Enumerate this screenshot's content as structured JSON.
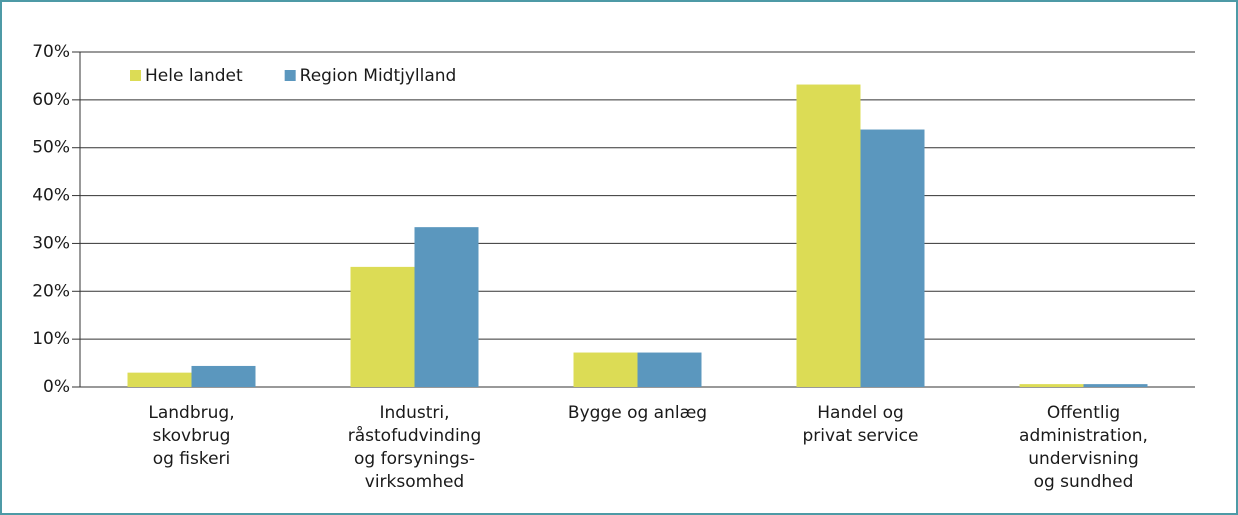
{
  "chart_data": {
    "type": "bar",
    "categories": [
      [
        "Landbrug,",
        "skovbrug",
        "og fiskeri"
      ],
      [
        "Industri,",
        "råstofudvinding",
        "og forsynings-",
        "virksomhed"
      ],
      [
        "Bygge og anlæg"
      ],
      [
        "Handel og",
        "privat service"
      ],
      [
        "Offentlig",
        "administration,",
        "undervisning",
        "og sundhed"
      ]
    ],
    "series": [
      {
        "name": "Hele landet",
        "color": "#dcdc55",
        "values": [
          3,
          25.1,
          7.2,
          63.2,
          0.6
        ]
      },
      {
        "name": "Region Midtjylland",
        "color": "#5b97be",
        "values": [
          4.4,
          33.4,
          7.2,
          53.8,
          0.6
        ]
      }
    ],
    "ylim": [
      0,
      70
    ],
    "yticks": [
      {
        "value": 0,
        "label": "0%"
      },
      {
        "value": 10,
        "label": "10%"
      },
      {
        "value": 20,
        "label": "20%"
      },
      {
        "value": 30,
        "label": "30%"
      },
      {
        "value": 40,
        "label": "40%"
      },
      {
        "value": 50,
        "label": "50%"
      },
      {
        "value": 60,
        "label": "60%"
      },
      {
        "value": 70,
        "label": "70%"
      }
    ],
    "grid": true,
    "legend": "top-left"
  }
}
